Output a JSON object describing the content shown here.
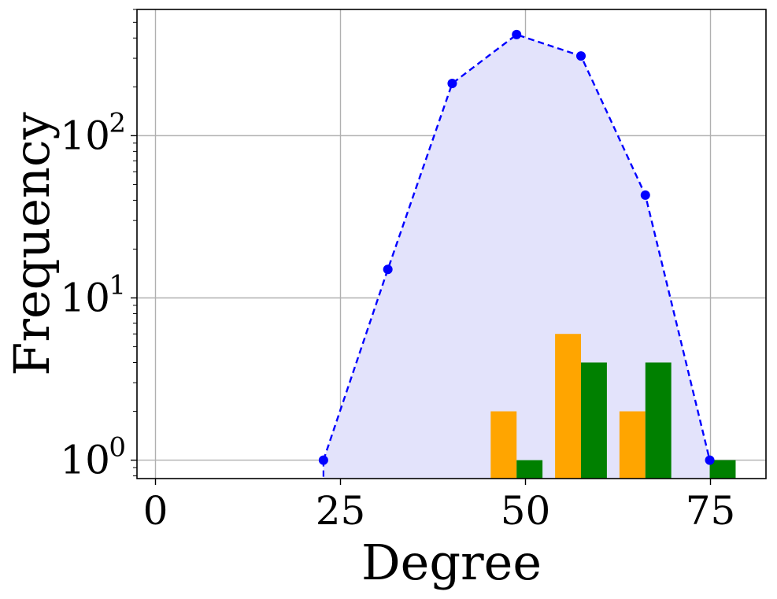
{
  "chart_data": {
    "type": "bar",
    "xlabel": "Degree",
    "ylabel": "Frequency",
    "y_scale": "log",
    "xlim": [
      -2.5,
      82.5
    ],
    "ylim": [
      0.77,
      600
    ],
    "grid": true,
    "x_ticks": [
      {
        "value": 0,
        "label": "0"
      },
      {
        "value": 25,
        "label": "25"
      },
      {
        "value": 50,
        "label": "50"
      },
      {
        "value": 75,
        "label": "75"
      }
    ],
    "y_ticks": [
      {
        "value": 1,
        "base": "10",
        "exp": "0"
      },
      {
        "value": 10,
        "base": "10",
        "exp": "1"
      },
      {
        "value": 100,
        "base": "10",
        "exp": "2"
      }
    ],
    "line_series": {
      "color": "#0000ff",
      "fill_color": "#e3e3fb",
      "style": "dashed",
      "marker": "circle",
      "x": [
        22.7,
        31.4,
        40.1,
        48.8,
        57.5,
        66.2,
        74.9
      ],
      "y": [
        1,
        15,
        210,
        420,
        310,
        43,
        1
      ]
    },
    "bar_series": [
      {
        "color": "#ffa500",
        "bars": [
          {
            "x0": 45.3,
            "x1": 48.8,
            "value": 2
          },
          {
            "x0": 54.0,
            "x1": 57.5,
            "value": 6
          },
          {
            "x0": 62.7,
            "x1": 66.2,
            "value": 2
          }
        ]
      },
      {
        "color": "#008000",
        "bars": [
          {
            "x0": 48.8,
            "x1": 52.3,
            "value": 1
          },
          {
            "x0": 57.5,
            "x1": 61.0,
            "value": 4
          },
          {
            "x0": 66.2,
            "x1": 69.7,
            "value": 4
          },
          {
            "x0": 74.9,
            "x1": 78.4,
            "value": 1
          }
        ]
      }
    ]
  }
}
